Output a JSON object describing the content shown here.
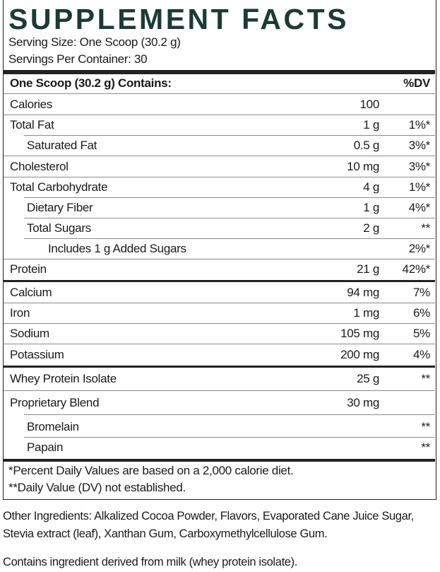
{
  "header": {
    "title": "SUPPLEMENT FACTS",
    "serving_size": "Serving Size: One Scoop (30.2 g)",
    "servings_per_container": "Servings Per Container: 30"
  },
  "table": {
    "header": [
      "One Scoop (30.2 g) Contains:",
      "%DV"
    ],
    "sections": [
      [
        [
          "Calories",
          "100",
          null
        ],
        [
          "Total Fat",
          "1 g",
          "1%*"
        ],
        [
          "Saturated Fat",
          "0.5 g",
          "3%*"
        ],
        [
          "Cholesterol",
          "10 mg",
          "3%*"
        ],
        [
          "Total Carbohydrate",
          "4 g",
          "1%*"
        ],
        [
          "Dietary Fiber",
          "1 g",
          "4%*"
        ],
        [
          "Total Sugars",
          "2 g",
          "**"
        ],
        [
          "Includes 1 g Added Sugars",
          null,
          "2%*"
        ],
        [
          "Protein",
          "21 g",
          "42%*"
        ]
      ],
      [
        [
          "Calcium",
          "94 mg",
          "7%"
        ],
        [
          "Iron",
          "1 mg",
          "6%"
        ],
        [
          "Sodium",
          "105 mg",
          "5%"
        ],
        [
          "Potassium",
          "200 mg",
          "4%"
        ]
      ],
      [
        [
          "Whey Protein Isolate",
          "25 g",
          "**"
        ],
        [
          "Proprietary Blend",
          "30 mg",
          null
        ],
        [
          "Bromelain",
          null,
          "**"
        ],
        [
          "Papain",
          null,
          "**"
        ]
      ]
    ]
  },
  "footnotes": [
    "*Percent Daily Values are based on a 2,000 calorie diet.",
    "**Daily Value (DV) not established."
  ],
  "other_ingredients": "Other Ingredients: Alkalized Cocoa Powder, Flavors, Evaporated Cane Juice Sugar, Stevia extract (leaf), Xanthan Gum, Carboxymethylcellulose Gum.",
  "allergen_note": "Contains ingredient derived from milk (whey protein isolate)."
}
